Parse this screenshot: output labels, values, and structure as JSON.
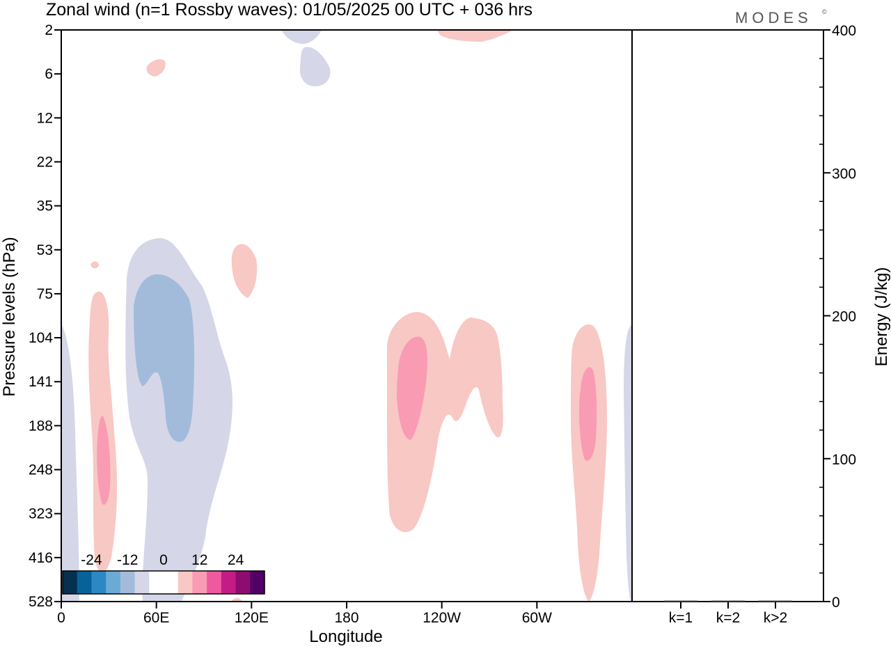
{
  "header": {
    "title": "Zonal wind (n=1 Rossby waves):  01/05/2025  00 UTC  + 036 hrs",
    "brand": "MODES",
    "brand_mark": "©"
  },
  "chart_data": [
    {
      "type": "heatmap",
      "title": "Zonal wind (n=1 Rossby waves):  01/05/2025  00 UTC  + 036 hrs",
      "xlabel": "Longitude",
      "ylabel": "Pressure levels (hPa)",
      "x_ticks": [
        "0",
        "60E",
        "120E",
        "180",
        "120W",
        "60W"
      ],
      "x_tick_values": [
        0,
        60,
        120,
        180,
        240,
        300
      ],
      "xlim": [
        0,
        360
      ],
      "y_ticks": [
        "2",
        "6",
        "12",
        "22",
        "35",
        "53",
        "75",
        "104",
        "141",
        "188",
        "248",
        "323",
        "416",
        "528"
      ],
      "y_direction": "pressure increasing downward",
      "colorbar": {
        "tick_labels": [
          "-24",
          "-12",
          "0",
          "12",
          "24"
        ],
        "colors": [
          "#06304f",
          "#08629a",
          "#2b88c2",
          "#6aaad4",
          "#a3bbda",
          "#d5d7e8",
          "#ffffff",
          "#ffffff",
          "#f8c8c4",
          "#f99bb3",
          "#ee5a9d",
          "#c41c85",
          "#8e0c6f",
          "#520066"
        ]
      },
      "contour_regions": [
        {
          "sign": "negative",
          "level": "weak",
          "color": "#d5d7e8",
          "feature": "deep region near 30E-110E, 53-528 hPa"
        },
        {
          "sign": "negative",
          "level": "moderate",
          "color": "#a3bbda",
          "feature": "core near 60E, 75-188 hPa"
        },
        {
          "sign": "negative",
          "level": "weak",
          "color": "#d5d7e8",
          "feature": "near 0E, 104-528 hPa"
        },
        {
          "sign": "negative",
          "level": "weak",
          "color": "#d5d7e8",
          "feature": "near 160E, 2-6 hPa"
        },
        {
          "sign": "negative",
          "level": "weak",
          "color": "#d5d7e8",
          "feature": "near 0W/360E, 104-528 hPa"
        },
        {
          "sign": "positive",
          "level": "weak",
          "color": "#f8c8c4",
          "feature": "near 25E, 75-416 hPa"
        },
        {
          "sign": "positive",
          "level": "moderate",
          "color": "#f99bb3",
          "feature": "near 25E, 188-323 hPa"
        },
        {
          "sign": "positive",
          "level": "weak",
          "color": "#f8c8c4",
          "feature": "near 115E, 53-75 hPa"
        },
        {
          "sign": "positive",
          "level": "weak",
          "color": "#f8c8c4",
          "feature": "near 60E, 6 hPa"
        },
        {
          "sign": "positive",
          "level": "weak",
          "color": "#f8c8c4",
          "feature": "near 110W-145W, 104-323 hPa"
        },
        {
          "sign": "positive",
          "level": "moderate",
          "color": "#f99bb3",
          "feature": "near 120W, 104-188 hPa"
        },
        {
          "sign": "positive",
          "level": "weak",
          "color": "#f8c8c4",
          "feature": "near 30W, 104-528 hPa"
        },
        {
          "sign": "positive",
          "level": "moderate",
          "color": "#f99bb3",
          "feature": "near 30W, 141-248 hPa"
        },
        {
          "sign": "positive",
          "level": "weak",
          "color": "#f8c8c4",
          "feature": "near 90W, 2 hPa"
        }
      ]
    },
    {
      "type": "bar",
      "ylabel": "Energy (J/kg)",
      "categories": [
        "k=1",
        "k=2",
        "k>2"
      ],
      "values": [
        0.2,
        0.2,
        0.3
      ],
      "ylim": [
        0,
        400
      ],
      "y_ticks": [
        0,
        100,
        200,
        300,
        400
      ]
    }
  ]
}
